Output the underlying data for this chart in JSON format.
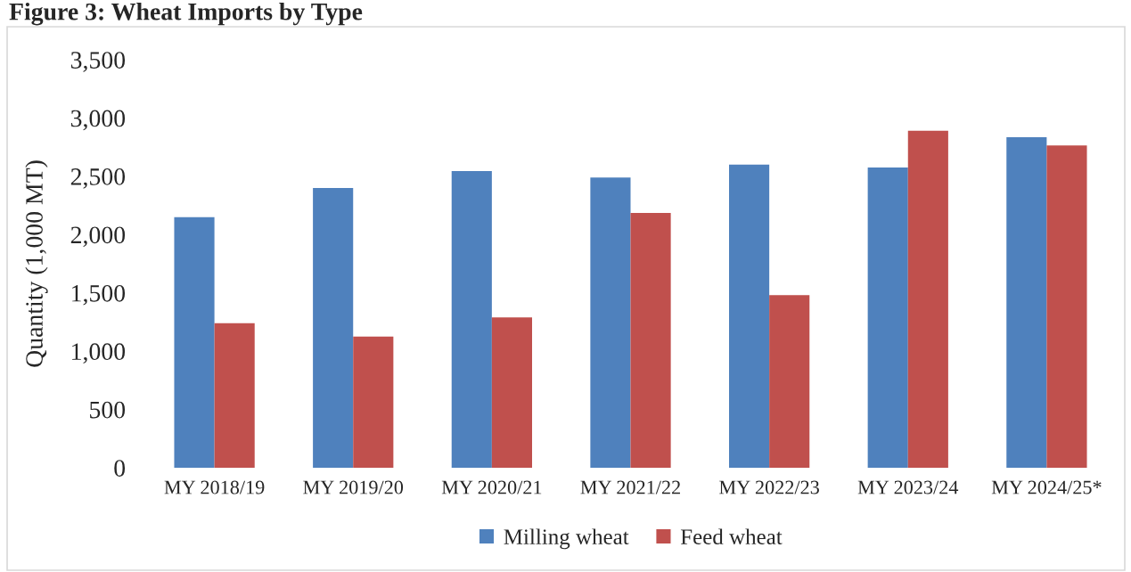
{
  "chart_data": {
    "type": "bar",
    "title": "Figure 3: Wheat Imports by Type",
    "ylabel": "Quantity (1,000 MT)",
    "categories": [
      "MY 2018/19",
      "MY 2019/20",
      "MY 2020/21",
      "MY 2021/22",
      "MY 2022/23",
      "MY 2023/24",
      "MY 2024/25*"
    ],
    "series": [
      {
        "name": "Milling wheat",
        "color": "#4f81bd",
        "values": [
          2150,
          2400,
          2545,
          2490,
          2600,
          2575,
          2835
        ]
      },
      {
        "name": "Feed wheat",
        "color": "#c0504d",
        "values": [
          1240,
          1125,
          1290,
          2185,
          1480,
          2890,
          2765
        ]
      }
    ],
    "ylim": [
      0,
      3500
    ],
    "yticks": [
      {
        "value": 0,
        "label": "0"
      },
      {
        "value": 500,
        "label": "500"
      },
      {
        "value": 1000,
        "label": "1,000"
      },
      {
        "value": 1500,
        "label": "1,500"
      },
      {
        "value": 2000,
        "label": "2,000"
      },
      {
        "value": 2500,
        "label": "2,500"
      },
      {
        "value": 3000,
        "label": "3,000"
      },
      {
        "value": 3500,
        "label": "3,500"
      }
    ],
    "grid": false,
    "legend": "bottom"
  }
}
